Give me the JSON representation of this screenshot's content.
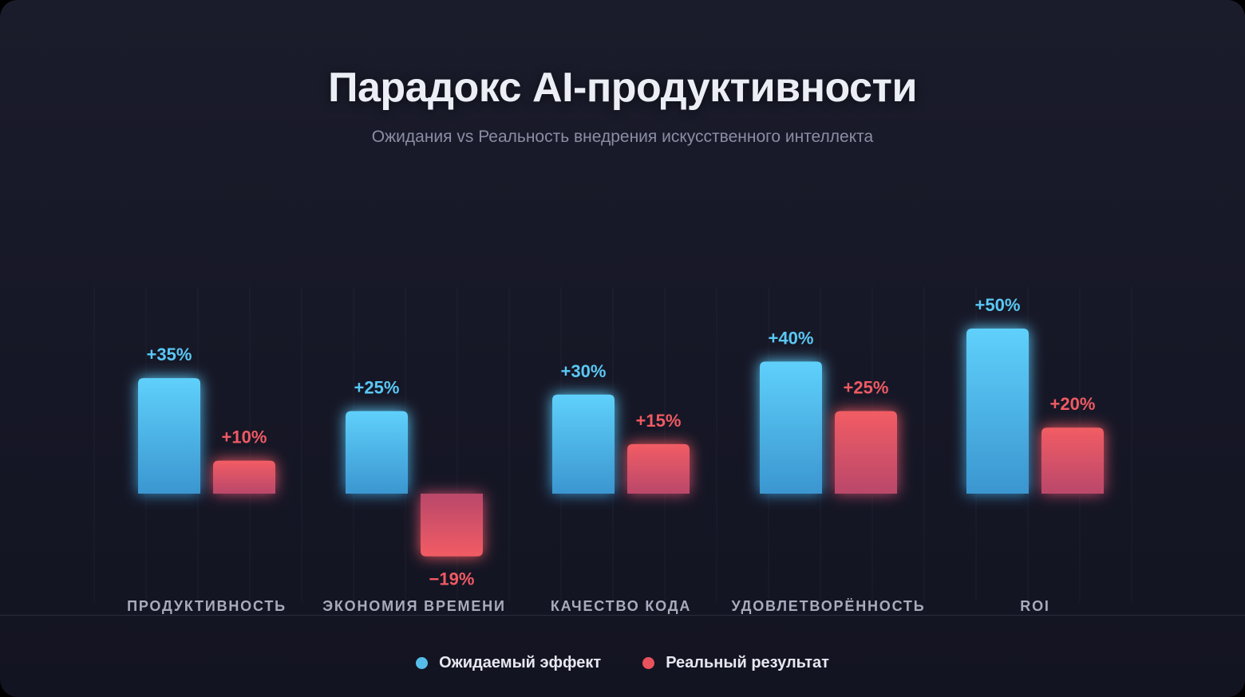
{
  "header": {
    "title": "Парадокс AI-продуктивности",
    "subtitle": "Ожидания vs Реальность внедрения искусственного интеллекта"
  },
  "colors": {
    "expected": "#5ac8f5",
    "expected_dark": "#3e9bd6",
    "actual": "#ef5a63",
    "actual_dark": "#c14a66"
  },
  "chart_data": {
    "type": "bar",
    "title": "Парадокс AI-продуктивности",
    "subtitle": "Ожидания vs Реальность внедрения искусственного интеллекта",
    "categories": [
      "ПРОДУКТИВНОСТЬ",
      "ЭКОНОМИЯ ВРЕМЕНИ",
      "КАЧЕСТВО КОДА",
      "УДОВЛЕТВОРЁННОСТЬ",
      "ROI"
    ],
    "series": [
      {
        "name": "Ожидаемый эффект",
        "values": [
          35,
          25,
          30,
          40,
          50
        ],
        "labels": [
          "+35%",
          "+25%",
          "+30%",
          "+40%",
          "+50%"
        ]
      },
      {
        "name": "Реальный результат",
        "values": [
          10,
          -19,
          15,
          25,
          20
        ],
        "labels": [
          "+10%",
          "−19%",
          "+15%",
          "+25%",
          "+20%"
        ]
      }
    ],
    "xlabel": "",
    "ylabel": "",
    "ylim": [
      -40,
      65
    ],
    "grid": true,
    "legend": "bottom-center"
  },
  "legend": {
    "items": [
      {
        "label": "Ожидаемый эффект"
      },
      {
        "label": "Реальный результат"
      }
    ]
  }
}
